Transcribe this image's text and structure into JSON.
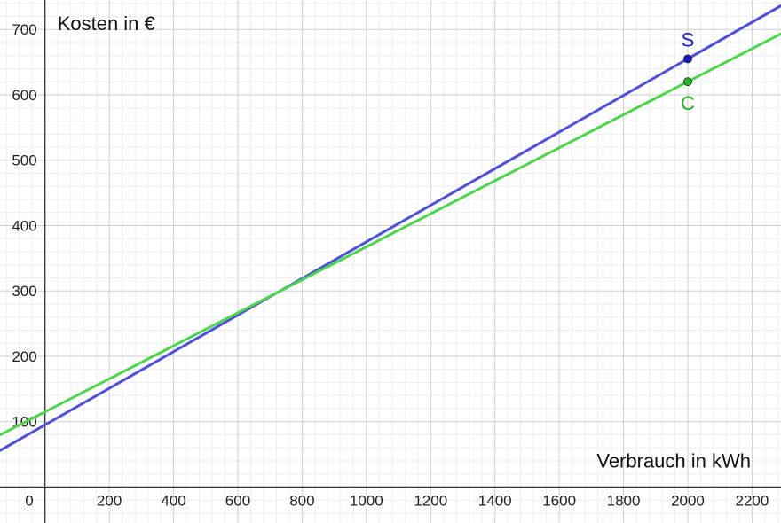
{
  "chart_data": {
    "type": "line",
    "xlabel": "Verbrauch in kWh",
    "ylabel": "Kosten in €",
    "xlim": [
      -140,
      2290
    ],
    "ylim": [
      -55,
      745
    ],
    "x_ticks": [
      0,
      200,
      400,
      600,
      800,
      1000,
      1200,
      1400,
      1600,
      1800,
      2000,
      2200
    ],
    "x_tick_labels": [
      "0",
      "200",
      "400",
      "600",
      "800",
      "1000",
      "1200",
      "1400",
      "1600",
      "1800",
      "2000",
      "2200"
    ],
    "y_ticks": [
      100,
      200,
      300,
      400,
      500,
      600,
      700
    ],
    "y_tick_labels": [
      "100",
      "200",
      "300",
      "400",
      "500",
      "600",
      "700"
    ],
    "grid": true,
    "minor_grid": true,
    "series": [
      {
        "name": "S",
        "color": "#4f4fdf",
        "point_color": "#1515c8",
        "label_color": "#1a1ad6",
        "intercept": 95,
        "slope": 0.28,
        "point": {
          "x": 2000,
          "y": 655
        }
      },
      {
        "name": "C",
        "color": "#4cd64c",
        "point_color": "#22bb22",
        "label_color": "#18b818",
        "intercept": 115,
        "slope": 0.2525,
        "point": {
          "x": 2000,
          "y": 620
        }
      }
    ]
  }
}
